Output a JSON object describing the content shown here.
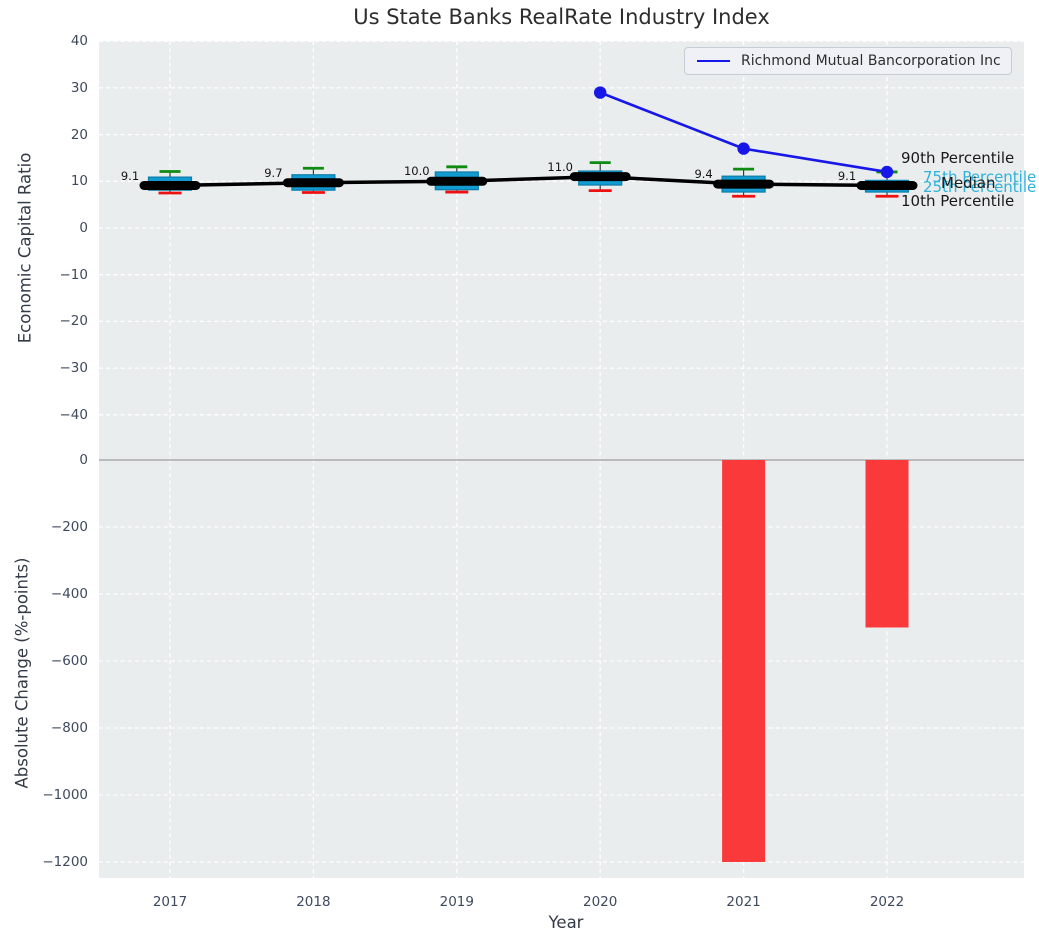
{
  "title": "Us State Banks RealRate Industry Index",
  "legend": {
    "series_label": "Richmond Mutual Bancorporation Inc"
  },
  "right_labels": {
    "p90": "90th Percentile",
    "p75": "75th Percentile",
    "median": "Median",
    "p25": "25th Percentile",
    "p10": "10th Percentile"
  },
  "colors": {
    "plot_background": "#e9edee",
    "grid": "#ffffff",
    "box_fill": "#119bd0",
    "box_edge": "#0c7cab",
    "whisker_high_cap": "#0e8b10",
    "whisker_low_cap": "#ee1111",
    "median_line": "#000000",
    "company_line": "#1717e8",
    "bar_negative": "#fa3a3a",
    "zero_line": "#a8a8a8",
    "tick_text": "#3e4a5e",
    "percentile_text": "#2fb1da"
  },
  "chart_data": [
    {
      "type": "boxplot+line",
      "panel": "top",
      "title": "Us State Banks RealRate Industry Index",
      "ylabel": "Economic Capital Ratio",
      "yticks": [
        40,
        30,
        20,
        10,
        0,
        -10,
        -20,
        -30,
        -40
      ],
      "ylim": [
        -45,
        40
      ],
      "grid": true,
      "legend_position": "upper right",
      "categories": [
        "2017",
        "2018",
        "2019",
        "2020",
        "2021",
        "2022"
      ],
      "boxes": [
        {
          "year": "2017",
          "whisker_low": 7.5,
          "q1": 8.1,
          "median": 9.1,
          "q3": 10.9,
          "whisker_high": 12.1,
          "label": "9.1"
        },
        {
          "year": "2018",
          "whisker_low": 7.6,
          "q1": 8.1,
          "median": 9.7,
          "q3": 11.4,
          "whisker_high": 12.8,
          "label": "9.7"
        },
        {
          "year": "2019",
          "whisker_low": 7.7,
          "q1": 8.2,
          "median": 10.0,
          "q3": 12.0,
          "whisker_high": 13.1,
          "label": "10.0"
        },
        {
          "year": "2020",
          "whisker_low": 8.0,
          "q1": 9.2,
          "median": 11.0,
          "q3": 12.2,
          "whisker_high": 14.0,
          "label": "11.0"
        },
        {
          "year": "2021",
          "whisker_low": 6.8,
          "q1": 7.7,
          "median": 9.4,
          "q3": 11.1,
          "whisker_high": 12.6,
          "label": "9.4"
        },
        {
          "year": "2022",
          "whisker_low": 6.8,
          "q1": 7.7,
          "median": 9.1,
          "q3": 10.2,
          "whisker_high": 12.0,
          "label": "9.1"
        }
      ],
      "series": [
        {
          "name": "Richmond Mutual Bancorporation Inc",
          "x": [
            "2020",
            "2021",
            "2022"
          ],
          "y": [
            29,
            17,
            12
          ]
        }
      ]
    },
    {
      "type": "bar",
      "panel": "bottom",
      "ylabel": "Absolute Change (%-points)",
      "xlabel": "Year",
      "yticks": [
        0,
        -200,
        -400,
        -600,
        -800,
        -1000,
        -1200
      ],
      "ylim": [
        -1255,
        80
      ],
      "grid": true,
      "categories": [
        "2017",
        "2018",
        "2019",
        "2020",
        "2021",
        "2022"
      ],
      "values": [
        null,
        null,
        null,
        null,
        -1200,
        -500
      ]
    }
  ]
}
